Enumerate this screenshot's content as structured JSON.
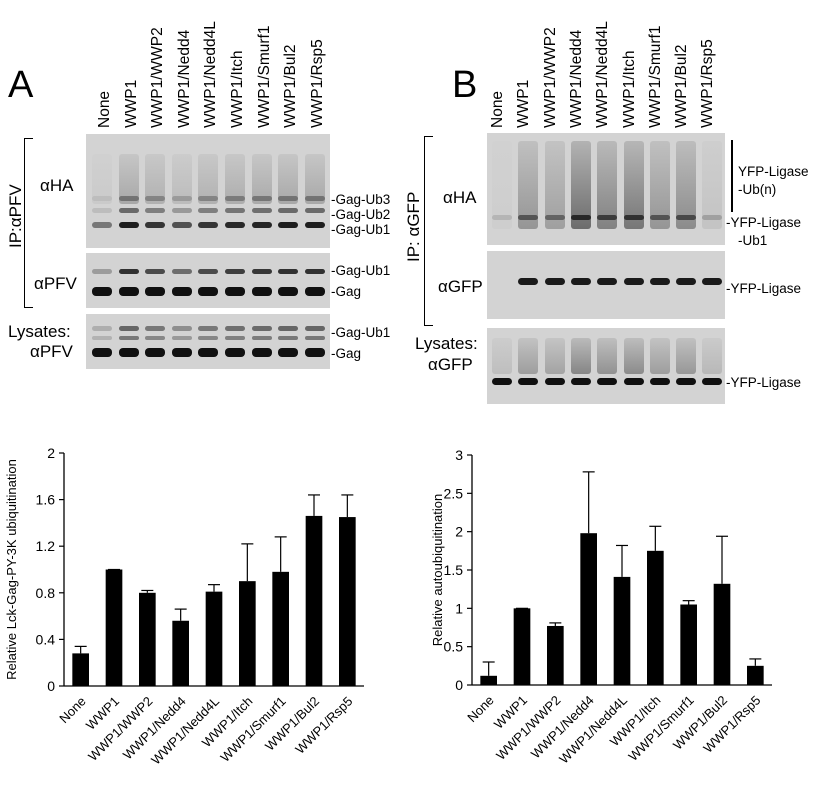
{
  "panel_a": {
    "letter": "A",
    "lanes": [
      "None",
      "WWP1",
      "WWP1/WWP2",
      "WWP1/Nedd4",
      "WWP1/Nedd4L",
      "WWP1/Itch",
      "WWP1/Smurf1",
      "WWP1/Bul2",
      "WWP1/Rsp5"
    ],
    "ip_label": "IP:αPFV",
    "blot1_antibody": "αHA",
    "blot1_markers": [
      "-Gag-Ub3",
      "-Gag-Ub2",
      "-Gag-Ub1"
    ],
    "blot2_antibody": "αPFV",
    "blot2_markers": [
      "-Gag-Ub1",
      "-Gag"
    ],
    "lysate_label_1": "Lysates:",
    "lysate_label_2": "αPFV",
    "blot3_markers": [
      "-Gag-Ub1",
      "-Gag"
    ]
  },
  "panel_b": {
    "letter": "B",
    "lanes": [
      "None",
      "WWP1",
      "WWP1/WWP2",
      "WWP1/Nedd4",
      "WWP1/Nedd4L",
      "WWP1/Itch",
      "WWP1/Smurf1",
      "WWP1/Bul2",
      "WWP1/Rsp5"
    ],
    "ip_label": "IP: αGFP",
    "blot1_antibody": "αHA",
    "blot1_markers": [
      "YFP-Ligase",
      "-Ub(n)",
      "-YFP-Ligase",
      "-Ub1"
    ],
    "blot2_antibody": "αGFP",
    "blot2_markers": [
      "-YFP-Ligase"
    ],
    "lysate_label_1": "Lysates:",
    "lysate_label_2": "αGFP",
    "blot3_markers": [
      "-YFP-Ligase"
    ]
  },
  "chart_data": [
    {
      "type": "bar",
      "categories": [
        "None",
        "WWP1",
        "WWP1/WWP2",
        "WWP1/Nedd4",
        "WWP1/Nedd4L",
        "WWP1/Itch",
        "WWP1/Smurf1",
        "WWP1/Bul2",
        "WWP1/Rsp5"
      ],
      "values": [
        0.28,
        1.0,
        0.8,
        0.56,
        0.81,
        0.9,
        0.98,
        1.46,
        1.45
      ],
      "errors": [
        0.06,
        0.0,
        0.02,
        0.1,
        0.06,
        0.32,
        0.3,
        0.18,
        0.19
      ],
      "title": "",
      "xlabel": "",
      "ylabel": "Relative Lck-Gag-PY-3K ubiquitination",
      "ylim": [
        0,
        2
      ],
      "yticks": [
        0,
        0.4,
        0.8,
        1.2,
        1.6,
        2
      ],
      "ytick_labels": [
        "0",
        "0.4",
        "0.8",
        "1.2",
        "1.6",
        "2"
      ],
      "grid": false,
      "bar_color": "#000000"
    },
    {
      "type": "bar",
      "categories": [
        "None",
        "WWP1",
        "WWP1/WWP2",
        "WWP1/Nedd4",
        "WWP1/Nedd4L",
        "WWP1/Itch",
        "WWP1/Smurf1",
        "WWP1/Bul2",
        "WWP1/Rsp5"
      ],
      "values": [
        0.12,
        1.0,
        0.77,
        1.98,
        1.41,
        1.75,
        1.05,
        1.32,
        0.25
      ],
      "errors": [
        0.18,
        0.0,
        0.04,
        0.8,
        0.41,
        0.32,
        0.05,
        0.62,
        0.09
      ],
      "title": "",
      "xlabel": "",
      "ylabel": "Relative autoubiquitination",
      "ylim": [
        0,
        3
      ],
      "yticks": [
        0,
        0.5,
        1,
        1.5,
        2,
        2.5,
        3
      ],
      "ytick_labels": [
        "0",
        "0.5",
        "1",
        "1.5",
        "2",
        "2.5",
        "3"
      ],
      "grid": false,
      "bar_color": "#000000"
    }
  ]
}
